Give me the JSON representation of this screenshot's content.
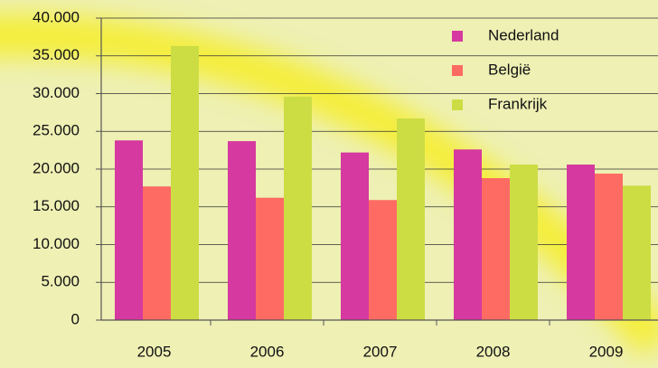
{
  "chart_data": {
    "type": "bar",
    "categories": [
      "2005",
      "2006",
      "2007",
      "2008",
      "2009"
    ],
    "series": [
      {
        "name": "Nederland",
        "color": "#d6399f",
        "values": [
          23800,
          23700,
          22200,
          22600,
          20600
        ]
      },
      {
        "name": "België",
        "color": "#fe6b63",
        "values": [
          17700,
          16200,
          15900,
          18800,
          19400
        ]
      },
      {
        "name": "Frankrijk",
        "color": "#ccdd44",
        "values": [
          36300,
          29600,
          26700,
          20600,
          17800
        ]
      }
    ],
    "ylim": [
      0,
      40000
    ],
    "yticks": [
      0,
      {
        "value": 5000,
        "label": "5.000"
      },
      {
        "value": 10000,
        "label": "10.000"
      },
      {
        "value": 15000,
        "label": "15.000"
      },
      {
        "value": 20000,
        "label": "20.000"
      },
      {
        "value": 25000,
        "label": "25.000"
      },
      {
        "value": 30000,
        "label": "30.000"
      },
      {
        "value": 35000,
        "label": "35.000"
      },
      {
        "value": 40000,
        "label": "40.000"
      }
    ],
    "grid": true,
    "legend": "top-right"
  }
}
